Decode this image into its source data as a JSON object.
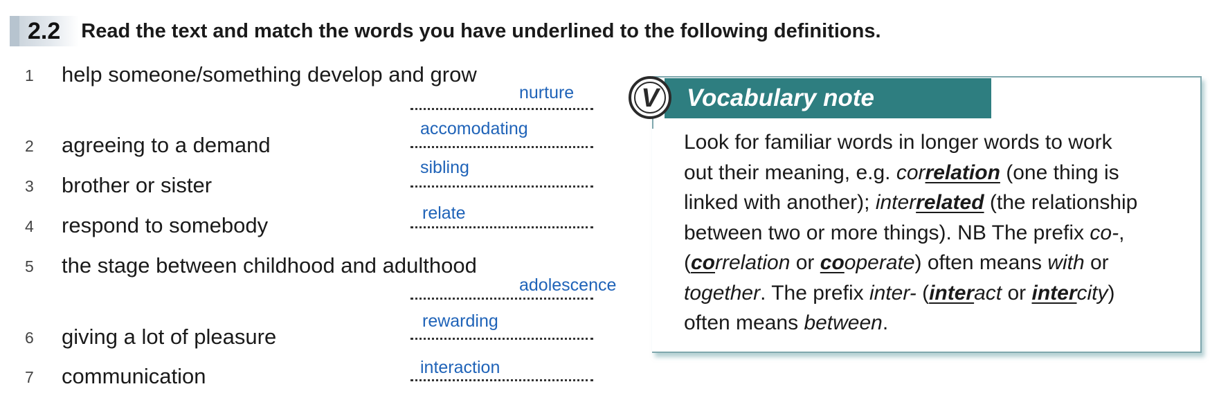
{
  "header": {
    "number": "2.2",
    "instruction": "Read the text and match the words you have underlined to the following definitions."
  },
  "items": [
    {
      "num": "1",
      "definition": "help someone/something develop and grow",
      "answer": "nurture"
    },
    {
      "num": "2",
      "definition": "agreeing to a demand",
      "answer": "accomodating"
    },
    {
      "num": "3",
      "definition": "brother or sister",
      "answer": "sibling"
    },
    {
      "num": "4",
      "definition": "respond to somebody",
      "answer": "relate"
    },
    {
      "num": "5",
      "definition": "the stage between childhood and adulthood",
      "answer": "adolescence"
    },
    {
      "num": "6",
      "definition": "giving a lot of pleasure",
      "answer": "rewarding"
    },
    {
      "num": "7",
      "definition": "communication",
      "answer": "interaction"
    }
  ],
  "vocab_note": {
    "logo_letter": "V",
    "title": "Vocabulary note",
    "l1": "Look for familiar words in longer words to work",
    "l2_a": "out their meaning, e.g. ",
    "l2_b": "cor",
    "l2_c": "relation",
    "l2_d": " (one thing is",
    "l3_a": "linked with another); ",
    "l3_b": "inter",
    "l3_c": "related",
    "l3_d": " (the relationship",
    "l4_a": "between two or more things). NB The prefix ",
    "l4_b": "co-",
    "l4_c": ",",
    "l5_a": "(",
    "l5_b": "co",
    "l5_c": "rrelation",
    "l5_d": " or ",
    "l5_e": "co",
    "l5_f": "operate",
    "l5_g": ") often means ",
    "l5_h": "with",
    "l5_i": " or",
    "l6_a": "together",
    "l6_b": ". The prefix ",
    "l6_c": "inter-",
    "l6_d": " (",
    "l6_e": "inter",
    "l6_f": "act",
    "l6_g": " or ",
    "l6_h": "inter",
    "l6_i": "city",
    "l6_j": ")",
    "l7_a": "often means ",
    "l7_b": "between",
    "l7_c": "."
  },
  "colors": {
    "answer": "#1f63b8",
    "banner": "#2e7e80"
  }
}
